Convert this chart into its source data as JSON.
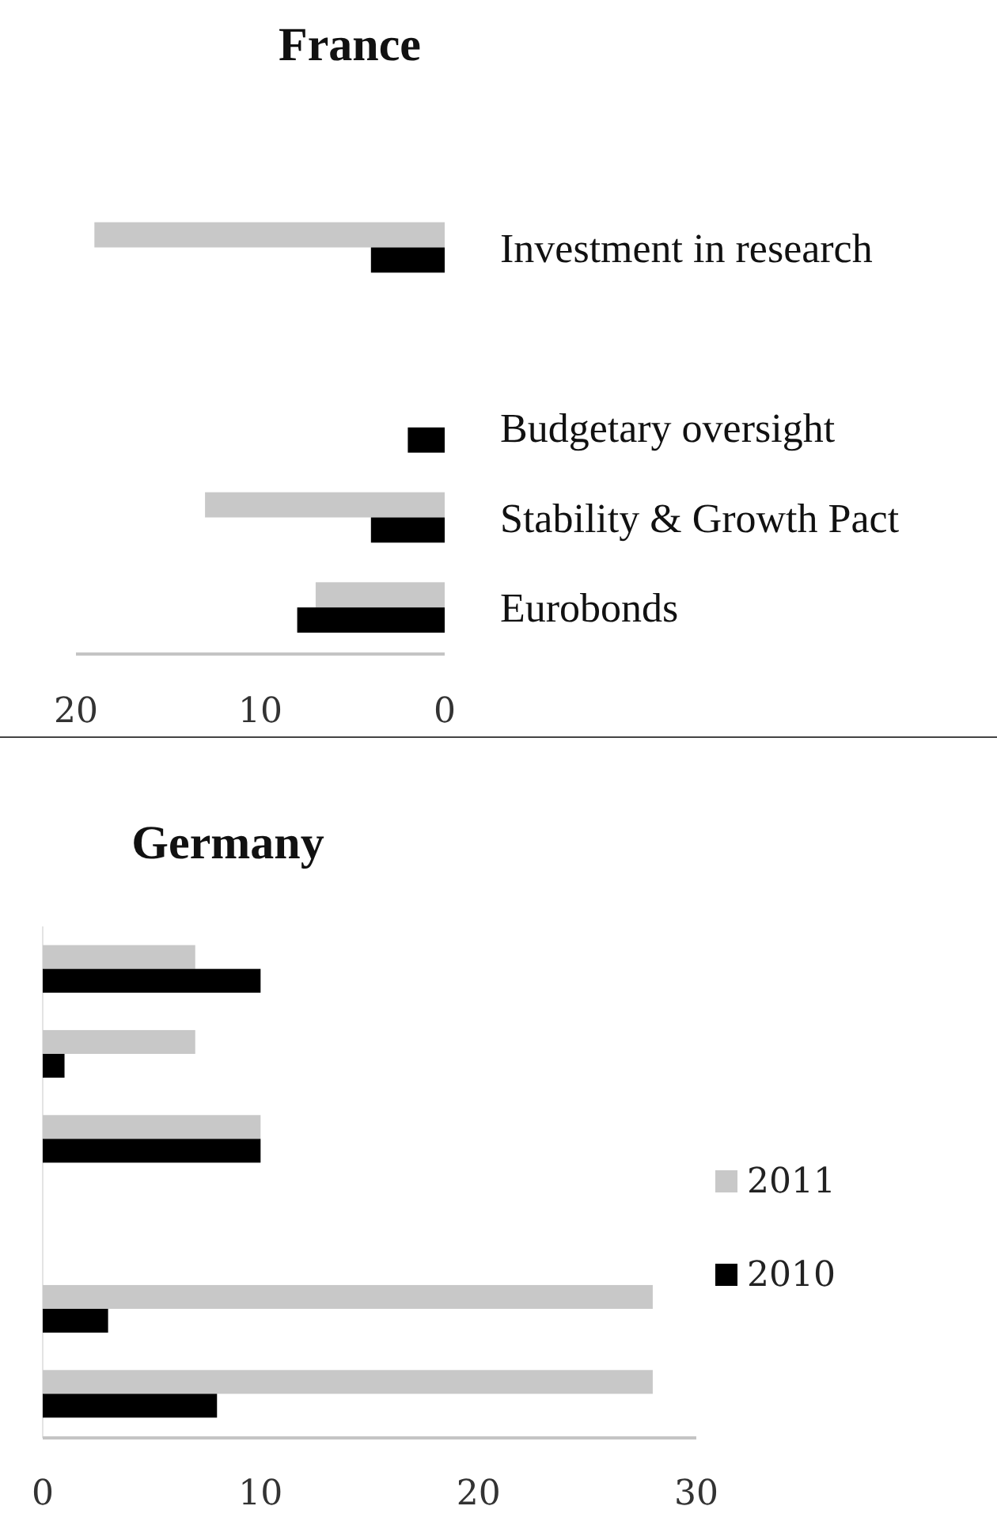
{
  "chart_data": [
    {
      "type": "bar",
      "orientation": "horizontal",
      "title": "France",
      "categories": [
        null,
        "Investment in research",
        null,
        "Budgetary oversight",
        "Stability & Growth Pact",
        "Eurobonds"
      ],
      "series": [
        {
          "color": "#c8c8c8",
          "values": [
            0,
            19,
            0,
            0,
            13,
            7
          ]
        },
        {
          "color": "#000000",
          "values": [
            0,
            4,
            0,
            2,
            4,
            8
          ]
        }
      ],
      "xlim": [
        20,
        0
      ],
      "xticks": [
        20,
        10,
        0
      ]
    },
    {
      "type": "bar",
      "orientation": "horizontal",
      "title": "Germany",
      "categories": [
        null,
        null,
        null,
        null,
        null,
        null
      ],
      "series": [
        {
          "name": "2011",
          "color": "#c8c8c8",
          "values": [
            7,
            7,
            10,
            0,
            28,
            28
          ]
        },
        {
          "name": "2010",
          "color": "#000000",
          "values": [
            10,
            1,
            10,
            0,
            3,
            8
          ]
        }
      ],
      "xlim": [
        0,
        30
      ],
      "xticks": [
        0,
        10,
        20,
        30
      ],
      "legend": "right"
    }
  ]
}
